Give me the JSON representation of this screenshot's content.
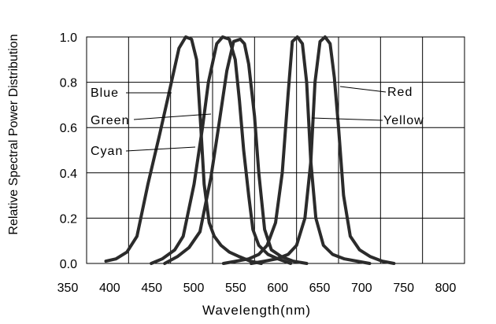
{
  "chart_data": {
    "type": "line",
    "title": "",
    "xlabel": "Wavelength(nm)",
    "ylabel": "Relative Spectral Power Distribution",
    "xlim": [
      350,
      800
    ],
    "ylim": [
      0,
      1.0
    ],
    "x_ticks": [
      "350",
      "400",
      "450",
      "500",
      "550",
      "600",
      "650",
      "700",
      "750",
      "800"
    ],
    "y_ticks": [
      "0.0",
      "0.2",
      "0.4",
      "0.6",
      "0.8",
      "1.0"
    ],
    "grid": true,
    "series": [
      {
        "name": "Blue",
        "x": [
          373,
          385,
          398,
          410,
          423,
          437,
          448,
          460,
          468,
          475,
          481,
          486,
          490,
          496,
          502,
          510,
          520,
          532,
          545,
          558
        ],
        "y": [
          0.01,
          0.02,
          0.05,
          0.12,
          0.35,
          0.57,
          0.75,
          0.95,
          1.0,
          0.99,
          0.9,
          0.6,
          0.35,
          0.18,
          0.12,
          0.08,
          0.05,
          0.03,
          0.01,
          0.0
        ]
      },
      {
        "name": "Green",
        "x": [
          427,
          440,
          455,
          465,
          478,
          488,
          495,
          505,
          512,
          520,
          527,
          532,
          537,
          543,
          548,
          555,
          566,
          578,
          593
        ],
        "y": [
          0.0,
          0.02,
          0.06,
          0.12,
          0.35,
          0.6,
          0.8,
          0.97,
          1.0,
          0.99,
          0.9,
          0.72,
          0.5,
          0.3,
          0.15,
          0.08,
          0.04,
          0.02,
          0.0
        ]
      },
      {
        "name": "Cyan",
        "x": [
          443,
          458,
          472,
          485,
          498,
          507,
          517,
          525,
          533,
          538,
          543,
          550,
          555,
          562,
          570,
          582,
          596,
          612
        ],
        "y": [
          0.0,
          0.03,
          0.07,
          0.14,
          0.38,
          0.6,
          0.85,
          0.98,
          0.99,
          0.97,
          0.88,
          0.65,
          0.4,
          0.15,
          0.06,
          0.03,
          0.01,
          0.0
        ]
      },
      {
        "name": "Red",
        "x": [
          513,
          528,
          543,
          555,
          565,
          575,
          583,
          590,
          595,
          601,
          607,
          612,
          617,
          623,
          632,
          643,
          657,
          672,
          687
        ],
        "y": [
          0.0,
          0.01,
          0.02,
          0.04,
          0.08,
          0.18,
          0.4,
          0.75,
          0.98,
          1.0,
          0.97,
          0.8,
          0.45,
          0.2,
          0.08,
          0.04,
          0.02,
          0.01,
          0.0
        ]
      },
      {
        "name": "Yellow",
        "x": [
          546,
          562,
          576,
          590,
          600,
          610,
          617,
          622,
          628,
          634,
          640,
          645,
          650,
          656,
          664,
          675,
          688,
          702,
          716
        ],
        "y": [
          0.0,
          0.01,
          0.02,
          0.04,
          0.08,
          0.2,
          0.45,
          0.8,
          0.98,
          1.0,
          0.97,
          0.82,
          0.6,
          0.3,
          0.12,
          0.06,
          0.03,
          0.01,
          0.0
        ]
      }
    ],
    "annotations": [
      {
        "text": "Blue",
        "series": "Blue",
        "side": "left"
      },
      {
        "text": "Green",
        "series": "Green",
        "side": "left"
      },
      {
        "text": "Cyan",
        "series": "Cyan",
        "side": "left"
      },
      {
        "text": "Red",
        "series": "Red",
        "side": "right"
      },
      {
        "text": "Yellow",
        "series": "Yellow",
        "side": "right"
      }
    ]
  }
}
